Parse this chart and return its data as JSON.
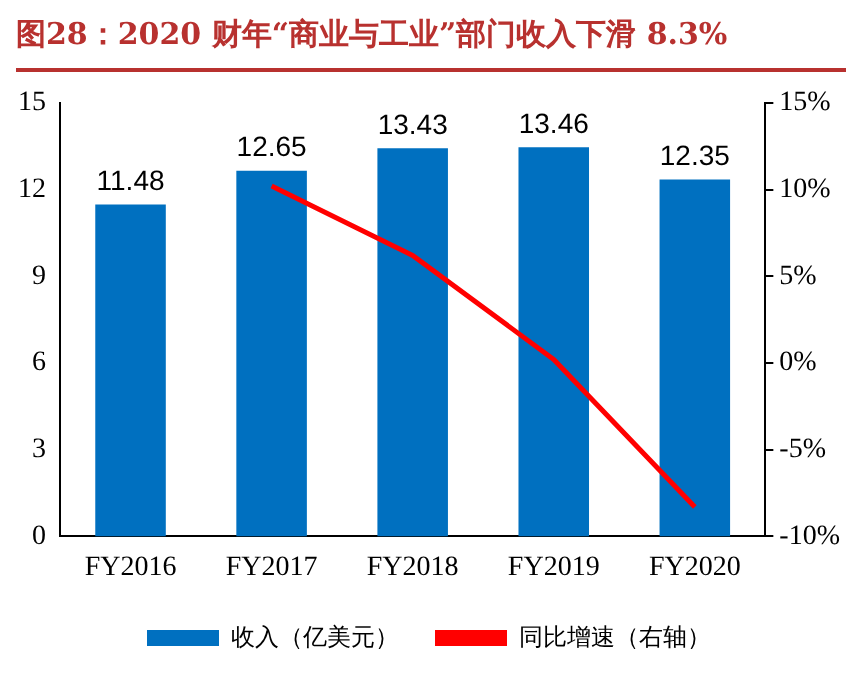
{
  "chart_data": {
    "type": "bar",
    "title": "图28：2020 财年“商业与工业”部门收入下滑 8.3%",
    "categories": [
      "FY2016",
      "FY2017",
      "FY2018",
      "FY2019",
      "FY2020"
    ],
    "series": [
      {
        "name": "收入（亿美元）",
        "color": "#0070c0",
        "values": [
          11.48,
          12.65,
          13.43,
          13.46,
          12.35
        ],
        "value_labels": [
          "11.48",
          "12.65",
          "13.43",
          "13.46",
          "12.35"
        ]
      },
      {
        "name": "同比增速（右轴）",
        "type": "line",
        "axis": "y2",
        "color": "#ff0000",
        "values": [
          null,
          10.2,
          6.2,
          0.2,
          -8.3
        ]
      }
    ],
    "ylim": [
      0,
      15
    ],
    "yticks": [
      0,
      3,
      6,
      9,
      12,
      15
    ],
    "y2lim": [
      -10,
      15
    ],
    "y2ticks": [
      {
        "value": -10,
        "label": "-10%"
      },
      {
        "value": -5,
        "label": "-5%"
      },
      {
        "value": 0,
        "label": "0%"
      },
      {
        "value": 5,
        "label": "5%"
      },
      {
        "value": 10,
        "label": "10%"
      },
      {
        "value": 15,
        "label": "15%"
      }
    ],
    "legend": "bottom",
    "grid": false
  }
}
